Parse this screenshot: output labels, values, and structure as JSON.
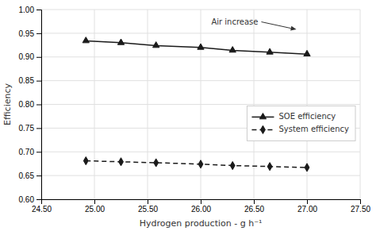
{
  "chart_data": {
    "type": "line",
    "x": [
      24.92,
      25.25,
      25.58,
      26.0,
      26.3,
      26.65,
      27.0
    ],
    "series": [
      {
        "name": "SOE efficiency",
        "color": "#1a1a1a",
        "marker": "triangle",
        "line_style": "solid",
        "values": [
          0.934,
          0.93,
          0.924,
          0.92,
          0.914,
          0.91,
          0.906
        ]
      },
      {
        "name": "System efficiency",
        "color": "#1a1a1a",
        "marker": "diamond",
        "line_style": "dashed",
        "values": [
          0.681,
          0.679,
          0.677,
          0.674,
          0.671,
          0.669,
          0.667
        ]
      }
    ],
    "xlabel": "Hydrogen production - g h⁻¹",
    "ylabel": "Efficiency",
    "xlim": [
      24.5,
      27.5
    ],
    "ylim": [
      0.6,
      1.0
    ],
    "xticks": [
      {
        "value": 24.5,
        "label": "24.50"
      },
      {
        "value": 25.0,
        "label": "25.00"
      },
      {
        "value": 25.5,
        "label": "25.50"
      },
      {
        "value": 26.0,
        "label": "26.00"
      },
      {
        "value": 26.5,
        "label": "26.50"
      },
      {
        "value": 27.0,
        "label": "27.00"
      },
      {
        "value": 27.5,
        "label": "27.50"
      }
    ],
    "yticks": [
      {
        "value": 0.6,
        "label": "0.60"
      },
      0.65,
      {
        "value": 0.7,
        "label": "0.70"
      },
      0.75,
      {
        "value": 0.8,
        "label": "0.80"
      },
      0.85,
      {
        "value": 0.9,
        "label": "0.90"
      },
      0.95,
      {
        "value": 1.0,
        "label": "1.00"
      }
    ],
    "grid": true,
    "legend": "right",
    "annotations": [
      {
        "text": "Air increase",
        "x": 26.1,
        "y": 0.974,
        "x_end": 26.9,
        "y_end": 0.958
      }
    ]
  }
}
